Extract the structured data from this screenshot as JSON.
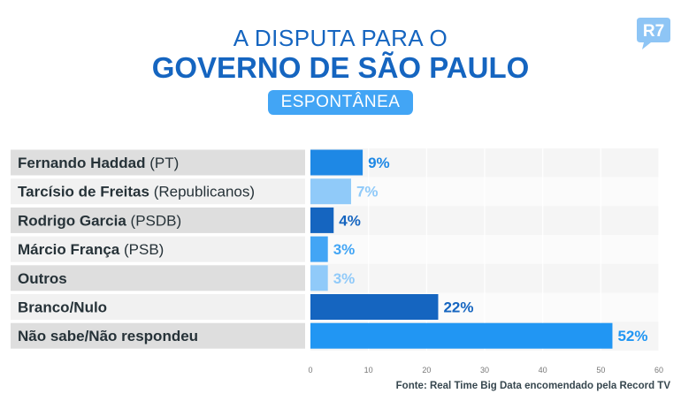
{
  "header": {
    "title_line1": "A DISPUTA PARA O",
    "title_line2": "GOVERNO DE SÃO PAULO",
    "subtitle": "ESPONTÂNEA",
    "logo_text": "R7"
  },
  "colors": {
    "title": "#1565c0",
    "pill": "#42a5f5",
    "bar_medium": "#1e88e5",
    "bar_light": "#90caf9",
    "bar_dark": "#1565c0",
    "bar_bright": "#2196f3",
    "label_bg_a": "#dedede",
    "label_bg_b": "#f1f1f1"
  },
  "chart_data": {
    "type": "bar",
    "orientation": "horizontal",
    "categories": [
      {
        "name": "Fernando Haddad",
        "party": "(PT)"
      },
      {
        "name": "Tarcísio de Freitas",
        "party": "(Republicanos)"
      },
      {
        "name": "Rodrigo Garcia",
        "party": "(PSDB)"
      },
      {
        "name": "Márcio França",
        "party": "(PSB)"
      },
      {
        "name": "Outros",
        "party": ""
      },
      {
        "name": "Branco/Nulo",
        "party": ""
      },
      {
        "name": "Não sabe/Não respondeu",
        "party": ""
      }
    ],
    "values": [
      9,
      7,
      4,
      3,
      3,
      22,
      52
    ],
    "value_labels": [
      "9%",
      "7%",
      "4%",
      "3%",
      "3%",
      "22%",
      "52%"
    ],
    "bar_colors": [
      "#1e88e5",
      "#90caf9",
      "#1565c0",
      "#42a5f5",
      "#90caf9",
      "#1565c0",
      "#2196f3"
    ],
    "label_colors": [
      "#1e88e5",
      "#90caf9",
      "#1565c0",
      "#42a5f5",
      "#90caf9",
      "#1565c0",
      "#2196f3"
    ],
    "xlim": [
      0,
      60
    ],
    "xticks": [
      "0",
      "10",
      "20",
      "30",
      "40",
      "50",
      "60"
    ],
    "grid": true
  },
  "footer": {
    "source": "Fonte: Real Time Big Data encomendado pela Record TV"
  }
}
